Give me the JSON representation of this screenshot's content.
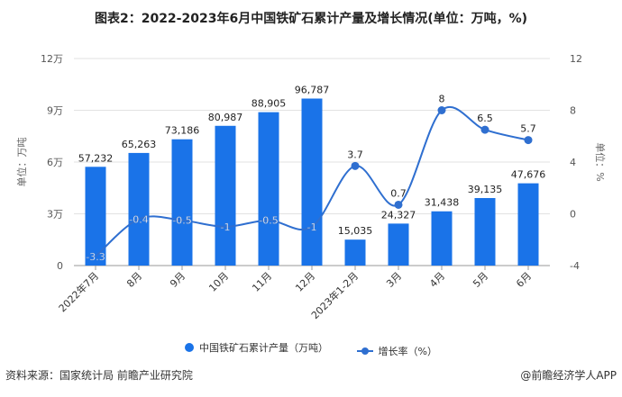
{
  "chart_data": {
    "type": "bar+line",
    "title": "图表2：2022-2023年6月中国铁矿石累计产量及增长情况(单位：万吨，%)",
    "categories": [
      "2022年7月",
      "8月",
      "9月",
      "10月",
      "11月",
      "12月",
      "2023年1-2月",
      "3月",
      "4月",
      "5月",
      "6月"
    ],
    "series": [
      {
        "name": "中国铁矿石累计产量（万吨）",
        "type": "bar",
        "axis": "left",
        "values": [
          57232,
          65263,
          73186,
          80987,
          88905,
          96787,
          15035,
          24327,
          31438,
          39135,
          47676
        ],
        "labels": [
          "57,232",
          "65,263",
          "73,186",
          "80,987",
          "88,905",
          "96,787",
          "15,035",
          "24,327",
          "31,438",
          "39,135",
          "47,676"
        ]
      },
      {
        "name": "增长率（%）",
        "type": "line",
        "axis": "right",
        "values": [
          -3.3,
          -0.4,
          -0.5,
          -1,
          -0.5,
          -1,
          3.7,
          0.7,
          8,
          6.5,
          5.7
        ],
        "labels": [
          "-3.3",
          "-0.4",
          "-0.5",
          "-1",
          "-0.5",
          "-1",
          "3.7",
          "0.7",
          "8",
          "6.5",
          "5.7"
        ]
      }
    ],
    "ylabel_left": "单位：万吨",
    "ylabel_right": "单位：%",
    "ylim_left": [
      0,
      120000
    ],
    "ylim_right": [
      -4,
      12
    ],
    "yticks_left": [
      "0",
      "3万",
      "6万",
      "9万",
      "12万"
    ],
    "yticks_right": [
      "-4",
      "0",
      "4",
      "8",
      "12"
    ],
    "grid": true,
    "legend": "bottom",
    "colors": {
      "bar": "#1a73e8",
      "line": "#2f6fd0"
    }
  },
  "footer": {
    "source": "资料来源：国家统计局 前瞻产业研究院",
    "credit": "@前瞻经济学人APP"
  }
}
